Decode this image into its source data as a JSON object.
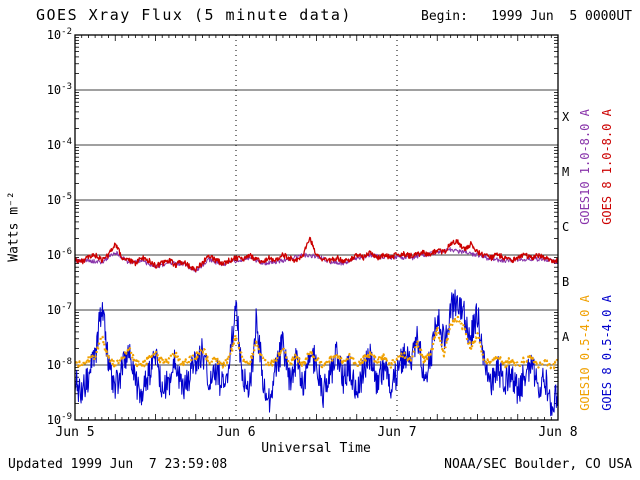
{
  "header": {
    "begin_label": "Begin:",
    "begin_value": "1999 Jun  5 0000UT"
  },
  "footer": {
    "updated": "Updated 1999 Jun  7 23:59:08",
    "org": "NOAA/SEC Boulder, CO USA"
  },
  "chart_data": {
    "type": "line",
    "title": "GOES Xray Flux (5 minute data)",
    "xlabel": "Universal Time",
    "ylabel": "Watts m⁻²",
    "x_unit": "hours since 1999 Jun 5 0000 UT",
    "xlim_hours": [
      0,
      72
    ],
    "ylim_log10": [
      -9,
      -2
    ],
    "y_exponents": [
      -2,
      -3,
      -4,
      -5,
      -6,
      -7,
      -8,
      -9
    ],
    "x_days": [
      {
        "label": "Jun 5",
        "hour": 0
      },
      {
        "label": "Jun 6",
        "hour": 24
      },
      {
        "label": "Jun 7",
        "hour": 48
      },
      {
        "label": "Jun 8",
        "hour": 72
      }
    ],
    "grid": {
      "h_decades": [
        -3,
        -4,
        -5,
        -6,
        -7,
        -8
      ],
      "v_dashed_hours": [
        24,
        48
      ]
    },
    "flare_classes": [
      {
        "label": "X",
        "log10_center": -3.5
      },
      {
        "label": "M",
        "log10_center": -4.5
      },
      {
        "label": "C",
        "log10_center": -5.5
      },
      {
        "label": "B",
        "log10_center": -6.5
      },
      {
        "label": "A",
        "log10_center": -7.5
      }
    ],
    "legend": [
      {
        "name": "GOES10 1.0-8.0 A",
        "color": "#8833aa",
        "position": "upper-inner"
      },
      {
        "name": "GOES 8 1.0-8.0 A",
        "color": "#cc0000",
        "position": "upper-outer"
      },
      {
        "name": "GOES10 0.5-4.0 A",
        "color": "#f0a000",
        "position": "lower-inner"
      },
      {
        "name": "GOES 8 0.5-4.0 A",
        "color": "#0000cc",
        "position": "lower-outer"
      }
    ],
    "series": [
      {
        "id": "goes10-long",
        "name": "GOES10 1.0-8.0 A",
        "color": "#8833aa",
        "style": "solid",
        "width": 1.0,
        "noise_amp": 0.04,
        "seed": 7,
        "hour_step": 2,
        "log10_flux": [
          -6.12,
          -6.1,
          -6.14,
          -5.95,
          -6.14,
          -6.1,
          -6.22,
          -6.15,
          -6.16,
          -6.28,
          -6.08,
          -6.18,
          -6.1,
          -6.06,
          -6.15,
          -6.12,
          -6.08,
          -6.0,
          -6.02,
          -6.12,
          -6.15,
          -6.05,
          -6.0,
          -6.05,
          -6.04,
          -6.06,
          -6.0,
          -5.96,
          -5.9,
          -5.96,
          -6.0,
          -6.08,
          -6.1,
          -6.08,
          -6.08,
          -6.08,
          -6.12
        ]
      },
      {
        "id": "goes8-long",
        "name": "GOES 8 1.0-8.0 A",
        "color": "#cc0000",
        "style": "solid",
        "width": 1.3,
        "noise_amp": 0.05,
        "seed": 3,
        "hour_step": 1,
        "log10_flux": [
          -6.08,
          -6.12,
          -6.05,
          -6.0,
          -6.1,
          -6.0,
          -5.78,
          -6.05,
          -6.1,
          -6.15,
          -6.05,
          -6.1,
          -6.2,
          -6.15,
          -6.1,
          -6.18,
          -6.12,
          -6.2,
          -6.25,
          -6.15,
          -6.0,
          -6.1,
          -6.15,
          -6.1,
          -6.05,
          -6.1,
          -6.0,
          -6.08,
          -6.12,
          -6.05,
          -6.1,
          -6.0,
          -6.05,
          -6.1,
          -6.0,
          -5.68,
          -6.0,
          -6.08,
          -6.1,
          -6.05,
          -6.12,
          -6.08,
          -6.0,
          -6.05,
          -5.95,
          -6.05,
          -6.0,
          -6.05,
          -6.0,
          -5.98,
          -6.02,
          -6.0,
          -5.95,
          -6.0,
          -5.9,
          -5.95,
          -5.8,
          -5.75,
          -5.9,
          -5.8,
          -5.95,
          -6.0,
          -6.05,
          -6.0,
          -6.05,
          -6.1,
          -6.05,
          -6.0,
          -6.05,
          -6.0,
          -6.05,
          -6.1,
          -6.1
        ]
      },
      {
        "id": "goes8-short",
        "name": "GOES 8 0.5-4.0 A",
        "color": "#0000cc",
        "style": "solid",
        "width": 1.0,
        "noise_amp": 0.28,
        "seed": 11,
        "hour_step": 1,
        "log10_flux": [
          -8.3,
          -8.5,
          -8.2,
          -7.9,
          -6.9,
          -8.0,
          -8.4,
          -8.1,
          -7.6,
          -8.3,
          -8.5,
          -8.2,
          -7.8,
          -8.4,
          -8.3,
          -7.9,
          -8.5,
          -8.2,
          -8.0,
          -7.7,
          -8.3,
          -8.1,
          -8.4,
          -8.0,
          -6.95,
          -8.2,
          -8.5,
          -7.2,
          -8.2,
          -8.6,
          -8.1,
          -7.6,
          -8.3,
          -7.9,
          -8.4,
          -7.7,
          -8.0,
          -8.5,
          -8.2,
          -7.8,
          -8.3,
          -8.0,
          -8.5,
          -8.1,
          -7.9,
          -8.3,
          -8.0,
          -8.4,
          -8.2,
          -7.8,
          -8.0,
          -7.5,
          -8.2,
          -7.9,
          -7.1,
          -7.6,
          -7.0,
          -6.8,
          -7.1,
          -7.5,
          -7.1,
          -7.9,
          -8.3,
          -8.0,
          -8.4,
          -8.1,
          -8.5,
          -8.2,
          -8.0,
          -8.4,
          -8.2,
          -8.7,
          -8.5
        ]
      },
      {
        "id": "goes10-short",
        "name": "GOES10 0.5-4.0 A",
        "color": "#f0a000",
        "style": "dotted",
        "width": 2.2,
        "noise_amp": 0.06,
        "seed": 5,
        "hour_step": 1,
        "log10_flux": [
          -7.95,
          -8.0,
          -7.9,
          -7.85,
          -7.5,
          -7.9,
          -8.0,
          -7.9,
          -7.7,
          -7.95,
          -8.0,
          -7.9,
          -7.8,
          -7.95,
          -7.9,
          -7.8,
          -8.0,
          -7.9,
          -7.85,
          -7.7,
          -7.95,
          -7.9,
          -8.0,
          -7.9,
          -7.45,
          -7.9,
          -8.0,
          -7.6,
          -7.9,
          -8.0,
          -7.9,
          -7.7,
          -7.95,
          -7.85,
          -8.0,
          -7.75,
          -7.9,
          -8.0,
          -7.9,
          -7.8,
          -7.95,
          -7.85,
          -8.0,
          -7.9,
          -7.8,
          -7.95,
          -7.85,
          -8.0,
          -7.9,
          -7.8,
          -7.9,
          -7.6,
          -7.9,
          -7.8,
          -7.35,
          -7.8,
          -7.25,
          -7.15,
          -7.35,
          -7.7,
          -7.45,
          -7.9,
          -7.95,
          -7.85,
          -8.0,
          -7.9,
          -8.0,
          -7.9,
          -7.85,
          -8.0,
          -7.9,
          -8.05,
          -7.95
        ]
      }
    ]
  }
}
